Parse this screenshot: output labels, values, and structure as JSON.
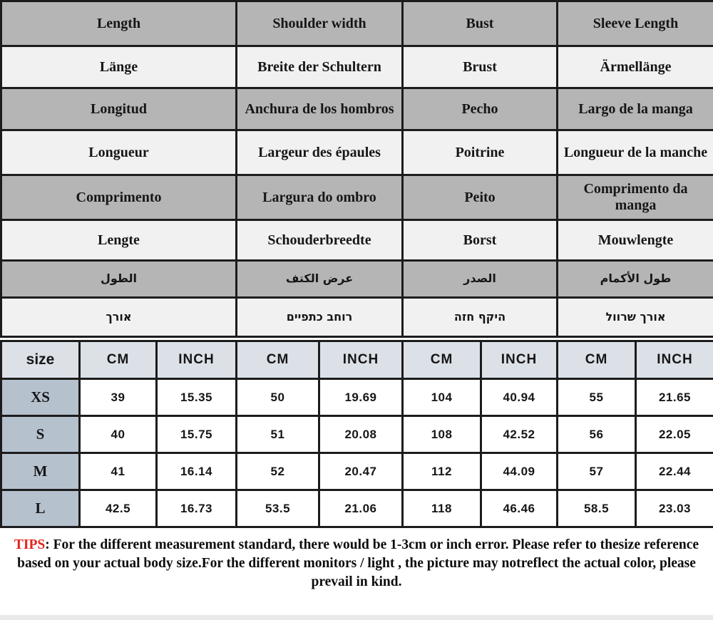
{
  "measurement_table": {
    "rows": [
      {
        "lang": "english",
        "shade": "gray",
        "rtl": false,
        "cells": [
          "Length",
          "Shoulder width",
          "Bust",
          "Sleeve Length"
        ]
      },
      {
        "lang": "german",
        "shade": "light",
        "rtl": false,
        "cells": [
          "Länge",
          "Breite der Schultern",
          "Brust",
          "Ärmellänge"
        ]
      },
      {
        "lang": "spanish",
        "shade": "gray",
        "rtl": false,
        "cells": [
          "Longitud",
          "Anchura de los hombros",
          "Pecho",
          "Largo de la manga"
        ]
      },
      {
        "lang": "french",
        "shade": "light",
        "rtl": false,
        "cells": [
          "Longueur",
          "Largeur des épaules",
          "Poitrine",
          "Longueur de la manche"
        ]
      },
      {
        "lang": "portuguese",
        "shade": "gray",
        "rtl": false,
        "cells": [
          "Comprimento",
          "Largura do ombro",
          "Peito",
          "Comprimento da manga"
        ]
      },
      {
        "lang": "dutch",
        "shade": "light",
        "rtl": false,
        "cells": [
          "Lengte",
          "Schouderbreedte",
          "Borst",
          "Mouwlengte"
        ]
      },
      {
        "lang": "arabic",
        "shade": "gray",
        "rtl": true,
        "cells": [
          "الطول",
          "عرض الكتف",
          "الصدر",
          "طول الأكمام"
        ]
      },
      {
        "lang": "hebrew",
        "shade": "light",
        "rtl": true,
        "cells": [
          "אורך",
          "רוחב כתפיים",
          "היקף חזה",
          "אורך שרוול"
        ]
      }
    ]
  },
  "size_table": {
    "size_header": "size",
    "unit_headers": [
      "CM",
      "INCH",
      "CM",
      "INCH",
      "CM",
      "INCH",
      "CM",
      "INCH"
    ],
    "rows": [
      {
        "size": "XS",
        "values": [
          "39",
          "15.35",
          "50",
          "19.69",
          "104",
          "40.94",
          "55",
          "21.65"
        ]
      },
      {
        "size": "S",
        "values": [
          "40",
          "15.75",
          "51",
          "20.08",
          "108",
          "42.52",
          "56",
          "22.05"
        ]
      },
      {
        "size": "M",
        "values": [
          "41",
          "16.14",
          "52",
          "20.47",
          "112",
          "44.09",
          "57",
          "22.44"
        ]
      },
      {
        "size": "L",
        "values": [
          "42.5",
          "16.73",
          "53.5",
          "21.06",
          "118",
          "46.46",
          "58.5",
          "23.03"
        ]
      }
    ]
  },
  "tips": {
    "label": "TIPS",
    "text": ": For the different measurement standard, there would be 1-3cm or inch error. Please refer to thesize reference based on your actual body size.For the different monitors / light , the picture may notreflect the actual color, please prevail in kind."
  },
  "colors": {
    "row_gray": "#b5b5b5",
    "row_light": "#f1f1f1",
    "header_blue": "#dce1e8",
    "size_column_blue": "#b6c1ce",
    "border_black": "#1c1c1c",
    "tips_red": "#e3231e"
  },
  "chart_data": {
    "type": "table",
    "title": "Garment size chart (multilingual headers)",
    "columns": [
      "size",
      "Length CM",
      "Length INCH",
      "Shoulder width CM",
      "Shoulder width INCH",
      "Bust CM",
      "Bust INCH",
      "Sleeve Length CM",
      "Sleeve Length INCH"
    ],
    "rows": [
      [
        "XS",
        39,
        15.35,
        50,
        19.69,
        104,
        40.94,
        55,
        21.65
      ],
      [
        "S",
        40,
        15.75,
        51,
        20.08,
        108,
        42.52,
        56,
        22.05
      ],
      [
        "M",
        41,
        16.14,
        52,
        20.47,
        112,
        44.09,
        57,
        22.44
      ],
      [
        "L",
        42.5,
        16.73,
        53.5,
        21.06,
        118,
        46.46,
        58.5,
        23.03
      ]
    ]
  }
}
